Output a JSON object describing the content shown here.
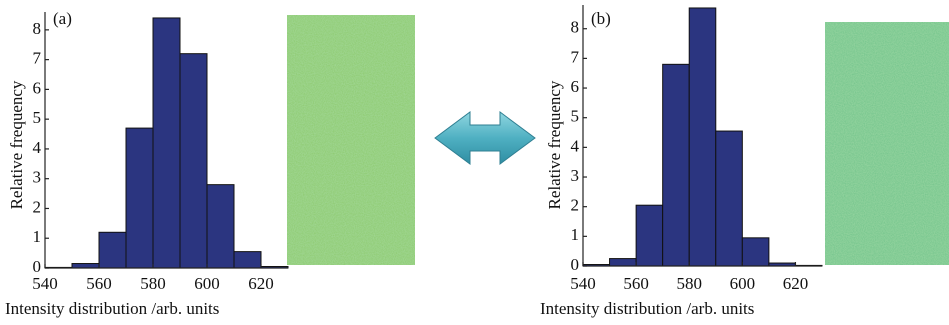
{
  "chart_data": [
    {
      "type": "histogram",
      "title": "(a)",
      "xlabel": "Intensity distribution /arb. units",
      "ylabel": "Relative frequency",
      "bins": [
        540,
        550,
        560,
        570,
        580,
        590,
        600,
        610,
        620,
        630
      ],
      "values": [
        0.02,
        0.15,
        1.2,
        4.7,
        8.4,
        7.2,
        2.8,
        0.55,
        0.05
      ],
      "color": "#2b3580",
      "xlim": [
        540,
        630
      ],
      "ylim": [
        0,
        8.6
      ],
      "xticks": [
        540,
        560,
        580,
        600,
        620
      ],
      "yticks": [
        0,
        1,
        2,
        3,
        4,
        5,
        6,
        7,
        8
      ]
    },
    {
      "type": "histogram",
      "title": "(b)",
      "xlabel": "Intensity distribution /arb. units",
      "ylabel": "Relative frequency",
      "bins": [
        540,
        550,
        560,
        570,
        580,
        590,
        600,
        610,
        620,
        630
      ],
      "values": [
        0.05,
        0.25,
        2.05,
        6.8,
        8.7,
        4.55,
        0.95,
        0.1,
        0.02
      ],
      "color": "#2b3580",
      "xlim": [
        540,
        630
      ],
      "ylim": [
        0,
        8.8
      ],
      "xticks": [
        540,
        560,
        580,
        600,
        620
      ],
      "yticks": [
        0,
        1,
        2,
        3,
        4,
        5,
        6,
        7,
        8
      ]
    }
  ]
}
